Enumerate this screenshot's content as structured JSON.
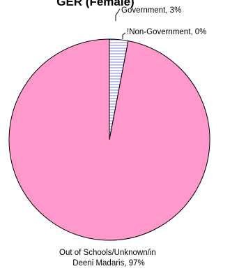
{
  "chart_data": {
    "type": "pie",
    "title": "GER (Female)",
    "slices": [
      {
        "label": "Government",
        "value": 3,
        "display": "Government, 3%",
        "color": "#e8eaf8",
        "pattern": "horizontal-stripes"
      },
      {
        "label": "!Non-Government",
        "value": 0,
        "display": "!Non-Government, 0%",
        "color": "#ffffff"
      },
      {
        "label": "Out of Schools/Unknown/in Deeni Madaris",
        "value": 97,
        "display_lines": [
          "Out of Schools/Unknown/in",
          "Deeni Madaris, 97%"
        ],
        "color": "#ff99cc"
      }
    ],
    "colors": {
      "outline": "#000000",
      "stripe": "#7b7fd8"
    }
  }
}
